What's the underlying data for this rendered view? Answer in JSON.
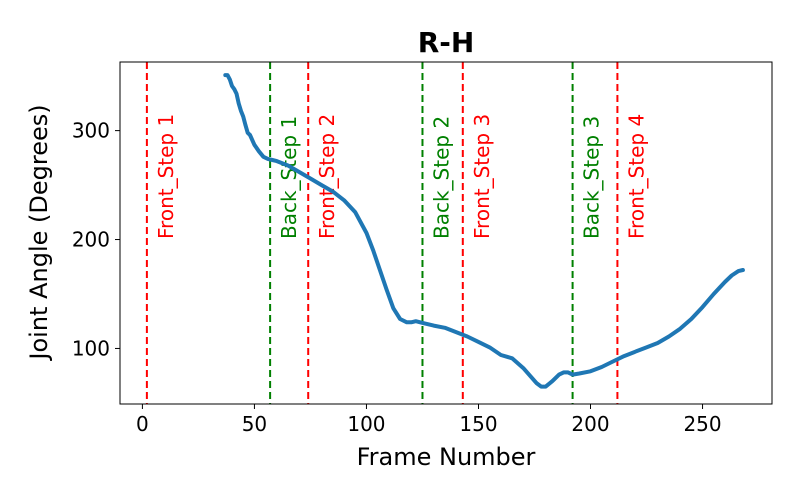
{
  "chart_data": {
    "type": "line",
    "title": "R-H",
    "xlabel": "Frame Number",
    "ylabel": "Joint Angle (Degrees)",
    "xlim": [
      -10,
      281
    ],
    "ylim": [
      49,
      363
    ],
    "xticks": [
      0,
      50,
      100,
      150,
      200,
      250
    ],
    "yticks": [
      100,
      200,
      300
    ],
    "grid": false,
    "series": [
      {
        "color": "#1f77b4",
        "x": [
          37,
          38,
          39,
          40,
          41,
          42,
          43,
          44,
          45,
          46,
          47,
          48,
          50,
          52,
          54,
          56,
          58,
          60,
          65,
          70,
          75,
          80,
          85,
          90,
          95,
          100,
          103,
          106,
          109,
          112,
          115,
          118,
          120,
          122,
          124,
          126,
          130,
          135,
          140,
          145,
          150,
          155,
          160,
          165,
          170,
          173,
          176,
          178,
          180,
          183,
          186,
          188,
          190,
          192,
          195,
          200,
          205,
          210,
          215,
          220,
          225,
          230,
          235,
          240,
          245,
          250,
          255,
          260,
          263,
          266,
          268
        ],
        "y": [
          351,
          351,
          347,
          341,
          338,
          334,
          325,
          318,
          313,
          305,
          298,
          296,
          287,
          281,
          276,
          274,
          273,
          272,
          268,
          262,
          256,
          250,
          244,
          236,
          225,
          206,
          190,
          172,
          154,
          137,
          127,
          124,
          124,
          125,
          124,
          123,
          121,
          119,
          115,
          111,
          106,
          101,
          94,
          91,
          82,
          75,
          68,
          65,
          65,
          70,
          76,
          78,
          78,
          76,
          77,
          79,
          83,
          88,
          93,
          97,
          101,
          105,
          111,
          118,
          127,
          138,
          150,
          161,
          167,
          171,
          172
        ]
      }
    ],
    "annotations": [
      {
        "x": 2,
        "label": "Front_Step 1",
        "color": "#ff0000"
      },
      {
        "x": 57,
        "label": "Back_Step 1",
        "color": "#008000"
      },
      {
        "x": 74,
        "label": "Front_Step 2",
        "color": "#ff0000"
      },
      {
        "x": 125,
        "label": "Back_Step 2",
        "color": "#008000"
      },
      {
        "x": 143,
        "label": "Front_Step 3",
        "color": "#ff0000"
      },
      {
        "x": 192,
        "label": "Back_Step 3",
        "color": "#008000"
      },
      {
        "x": 212,
        "label": "Front_Step 4",
        "color": "#ff0000"
      }
    ]
  }
}
